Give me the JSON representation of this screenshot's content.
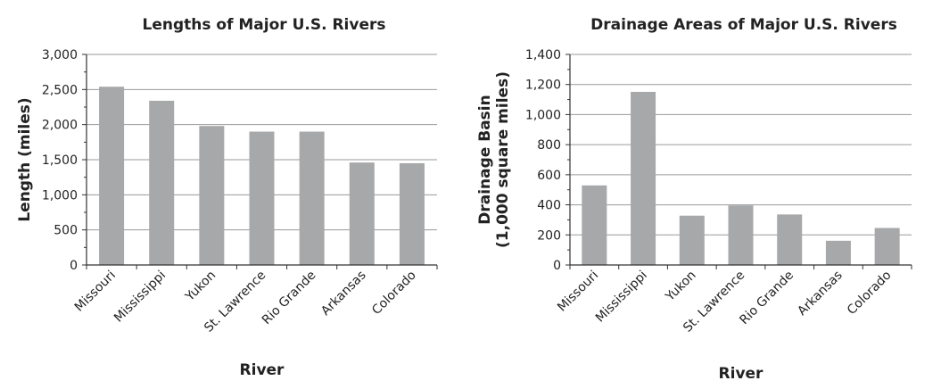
{
  "chart_data": [
    {
      "type": "bar",
      "title": "Lengths of Major U.S. Rivers",
      "xlabel": "River",
      "ylabel": "Length (miles)",
      "categories": [
        "Missouri",
        "Mississippi",
        "Yukon",
        "St. Lawrence",
        "Rio Grande",
        "Arkansas",
        "Colorado"
      ],
      "values": [
        2540,
        2340,
        1980,
        1900,
        1900,
        1460,
        1450
      ],
      "ylim": [
        0,
        3000
      ],
      "yticks": [
        0,
        500,
        1000,
        1500,
        2000,
        2500,
        3000
      ],
      "ytick_labels": [
        "0",
        "500",
        "1,000",
        "1,500",
        "2,000",
        "2,500",
        "3,000"
      ],
      "grid": true,
      "bar_color": "#a7a8aa"
    },
    {
      "type": "bar",
      "title": "Drainage Areas of Major U.S. Rivers",
      "xlabel": "River",
      "ylabel": [
        "Drainage Basin",
        "(1,000 square miles)"
      ],
      "categories": [
        "Missouri",
        "Mississippi",
        "Yukon",
        "St. Lawrence",
        "Rio Grande",
        "Arkansas",
        "Colorado"
      ],
      "values": [
        529,
        1151,
        328,
        396,
        336,
        161,
        246
      ],
      "ylim": [
        0,
        1400
      ],
      "yticks": [
        0,
        200,
        400,
        600,
        800,
        1000,
        1200,
        1400
      ],
      "ytick_labels": [
        "0",
        "200",
        "400",
        "600",
        "800",
        "1,000",
        "1,200",
        "1,400"
      ],
      "grid": true,
      "bar_color": "#a7a8aa"
    }
  ]
}
